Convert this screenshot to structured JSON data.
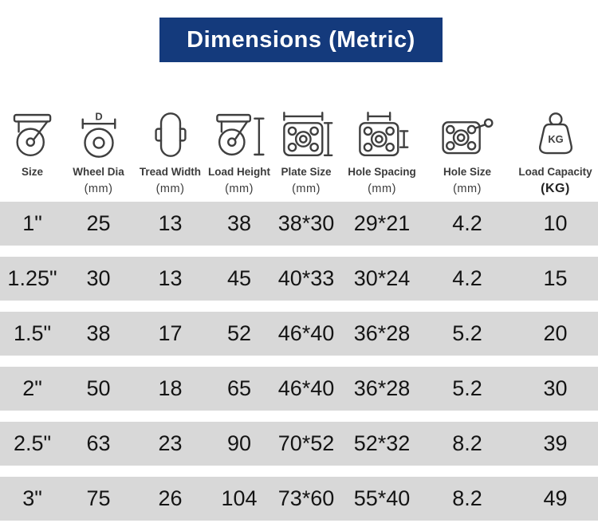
{
  "title": "Dimensions (Metric)",
  "colors": {
    "header_bg": "#143a7c",
    "header_text": "#ffffff",
    "row_bg": "#d8d8d8",
    "value_text": "#141414",
    "label_text": "#3b3b3b",
    "icon_stroke": "#3f3f3f"
  },
  "columns": [
    {
      "id": "size",
      "label": "Size",
      "unit": "",
      "icon": "caster-icon"
    },
    {
      "id": "wheel_dia",
      "label": "Wheel Dia",
      "unit": "(mm)",
      "icon": "wheel-diameter-icon"
    },
    {
      "id": "tread_width",
      "label": "Tread Width",
      "unit": "(mm)",
      "icon": "tread-width-icon"
    },
    {
      "id": "load_height",
      "label": "Load Height",
      "unit": "(mm)",
      "icon": "load-height-icon"
    },
    {
      "id": "plate_size",
      "label": "Plate Size",
      "unit": "(mm)",
      "icon": "plate-size-icon"
    },
    {
      "id": "hole_spacing",
      "label": "Hole Spacing",
      "unit": "(mm)",
      "icon": "hole-spacing-icon"
    },
    {
      "id": "hole_size",
      "label": "Hole Size",
      "unit": "(mm)",
      "icon": "hole-size-icon"
    },
    {
      "id": "load_capacity",
      "label": "Load Capacity",
      "unit": "(KG)",
      "icon": "weight-icon"
    }
  ],
  "rows": [
    [
      "1\"",
      "25",
      "13",
      "38",
      "38*30",
      "29*21",
      "4.2",
      "10"
    ],
    [
      "1.25\"",
      "30",
      "13",
      "45",
      "40*33",
      "30*24",
      "4.2",
      "15"
    ],
    [
      "1.5\"",
      "38",
      "17",
      "52",
      "46*40",
      "36*28",
      "5.2",
      "20"
    ],
    [
      "2\"",
      "50",
      "18",
      "65",
      "46*40",
      "36*28",
      "5.2",
      "30"
    ],
    [
      "2.5\"",
      "63",
      "23",
      "90",
      "70*52",
      "52*32",
      "8.2",
      "39"
    ],
    [
      "3\"",
      "75",
      "26",
      "104",
      "73*60",
      "55*40",
      "8.2",
      "49"
    ]
  ]
}
